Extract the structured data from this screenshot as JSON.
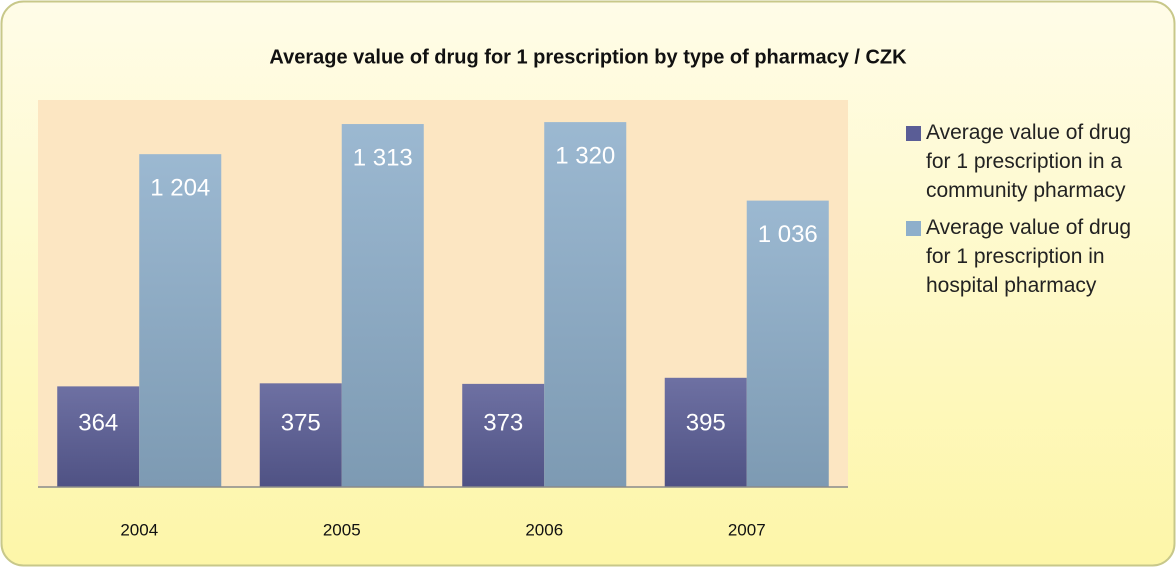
{
  "chart_data": {
    "type": "bar",
    "title": "Average value of drug for 1 prescription by type of pharmacy / CZK",
    "categories": [
      "2004",
      "2005",
      "2006",
      "2007"
    ],
    "series": [
      {
        "name": "Average value of drug for 1 prescription in a community pharmacy",
        "color": "#5a5d96",
        "values": [
          364,
          375,
          373,
          395
        ],
        "value_labels": [
          "364",
          "375",
          "373",
          "395"
        ]
      },
      {
        "name": "Average value of drug for 1 prescription in hospital pharmacy",
        "color": "#8eafcb",
        "values": [
          1204,
          1313,
          1320,
          1036
        ],
        "value_labels": [
          "1 204",
          "1 313",
          "1 320",
          "1 036"
        ]
      }
    ],
    "ylim": [
      0,
      1400
    ],
    "legend": "right"
  }
}
